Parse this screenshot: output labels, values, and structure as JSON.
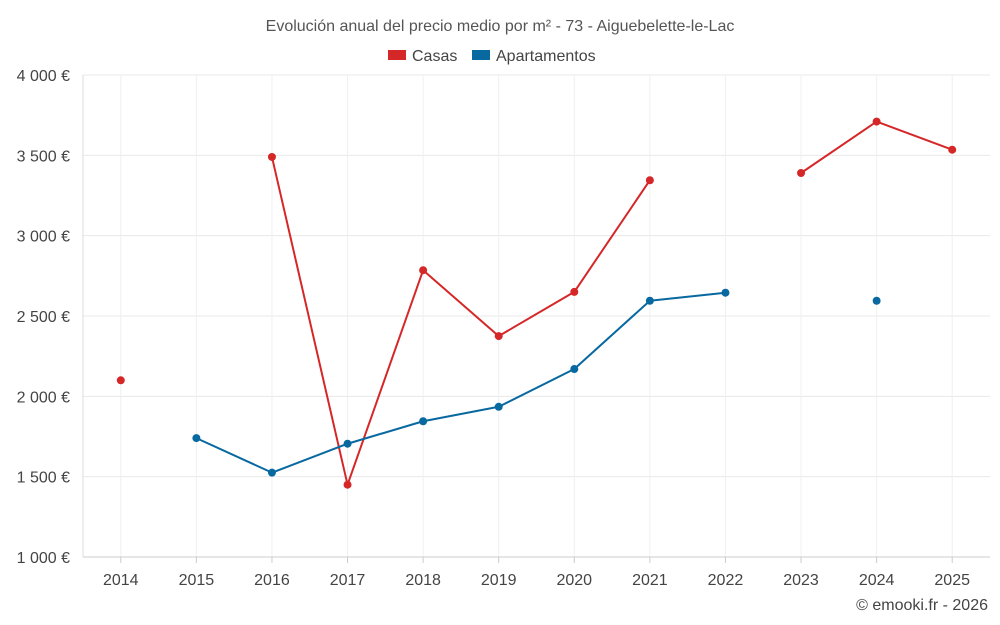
{
  "chart_data": {
    "type": "line",
    "title": "Evolución anual del precio medio por m² - 73 - Aiguebelette-le-Lac",
    "xlabel": "",
    "ylabel": "",
    "categories": [
      "2014",
      "2015",
      "2016",
      "2017",
      "2018",
      "2019",
      "2020",
      "2021",
      "2022",
      "2023",
      "2024",
      "2025"
    ],
    "y_ticks": [
      "1 000 €",
      "1 500 €",
      "2 000 €",
      "2 500 €",
      "3 000 €",
      "3 500 €",
      "4 000 €"
    ],
    "y_tick_values": [
      1000,
      1500,
      2000,
      2500,
      3000,
      3500,
      4000
    ],
    "ylim": [
      1000,
      4000
    ],
    "grid": true,
    "legend_position": "top-center",
    "series": [
      {
        "name": "Casas",
        "color": "#d62728",
        "values": [
          2100,
          null,
          3490,
          1450,
          2785,
          2375,
          2650,
          3345,
          null,
          3390,
          3710,
          3535
        ]
      },
      {
        "name": "Apartamentos",
        "color": "#0868a0",
        "values": [
          null,
          1740,
          1525,
          1705,
          1845,
          1935,
          2170,
          2595,
          2645,
          null,
          2595,
          null
        ]
      }
    ],
    "credit": "© emooki.fr - 2026"
  }
}
